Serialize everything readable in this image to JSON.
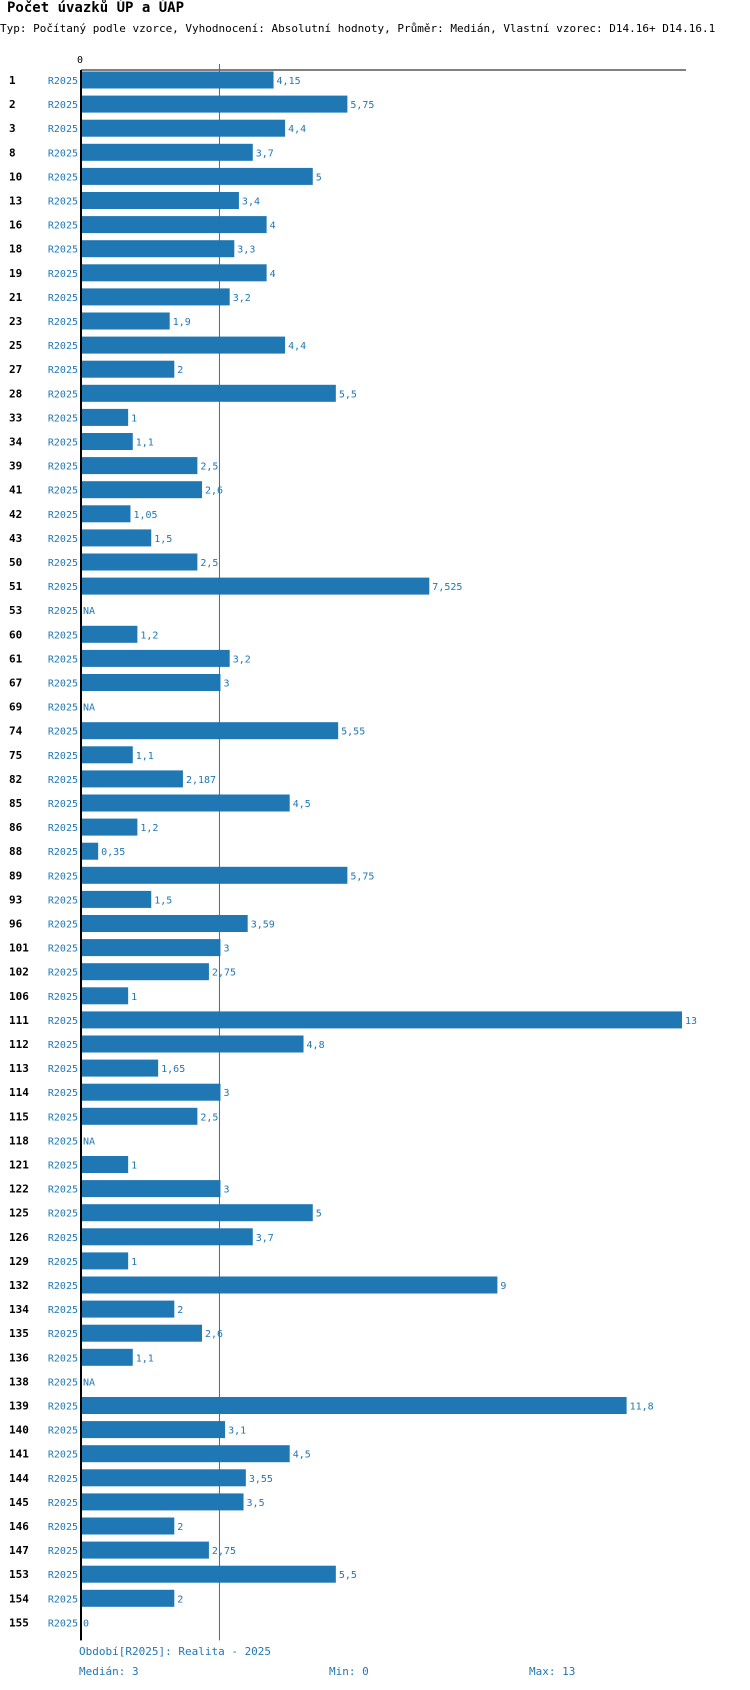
{
  "title": "Počet úvazků ÚP a ÚAP",
  "subtitle": "Typ: Počítaný podle vzorce, Vyhodnocení: Absolutní hodnoty, Průměr: Medián, Vlastní vzorec: D14.16+ D14.16.1",
  "colors": {
    "bar": "#1f77b4",
    "label": "#1f77b4",
    "id": "#000000",
    "median_line": "#1f77b4"
  },
  "chart_data": {
    "type": "bar",
    "orientation": "horizontal",
    "series_name": "R2025",
    "axis_zero_label": "0",
    "xlim": [
      0,
      13
    ],
    "median": 3,
    "rows": [
      {
        "id": "1",
        "period": "R2025",
        "value": 4.15,
        "label": "4,15"
      },
      {
        "id": "2",
        "period": "R2025",
        "value": 5.75,
        "label": "5,75"
      },
      {
        "id": "3",
        "period": "R2025",
        "value": 4.4,
        "label": "4,4"
      },
      {
        "id": "8",
        "period": "R2025",
        "value": 3.7,
        "label": "3,7"
      },
      {
        "id": "10",
        "period": "R2025",
        "value": 5,
        "label": "5"
      },
      {
        "id": "13",
        "period": "R2025",
        "value": 3.4,
        "label": "3,4"
      },
      {
        "id": "16",
        "period": "R2025",
        "value": 4,
        "label": "4"
      },
      {
        "id": "18",
        "period": "R2025",
        "value": 3.3,
        "label": "3,3"
      },
      {
        "id": "19",
        "period": "R2025",
        "value": 4,
        "label": "4"
      },
      {
        "id": "21",
        "period": "R2025",
        "value": 3.2,
        "label": "3,2"
      },
      {
        "id": "23",
        "period": "R2025",
        "value": 1.9,
        "label": "1,9"
      },
      {
        "id": "25",
        "period": "R2025",
        "value": 4.4,
        "label": "4,4"
      },
      {
        "id": "27",
        "period": "R2025",
        "value": 2,
        "label": "2"
      },
      {
        "id": "28",
        "period": "R2025",
        "value": 5.5,
        "label": "5,5"
      },
      {
        "id": "33",
        "period": "R2025",
        "value": 1,
        "label": "1"
      },
      {
        "id": "34",
        "period": "R2025",
        "value": 1.1,
        "label": "1,1"
      },
      {
        "id": "39",
        "period": "R2025",
        "value": 2.5,
        "label": "2,5"
      },
      {
        "id": "41",
        "period": "R2025",
        "value": 2.6,
        "label": "2,6"
      },
      {
        "id": "42",
        "period": "R2025",
        "value": 1.05,
        "label": "1,05"
      },
      {
        "id": "43",
        "period": "R2025",
        "value": 1.5,
        "label": "1,5"
      },
      {
        "id": "50",
        "period": "R2025",
        "value": 2.5,
        "label": "2,5"
      },
      {
        "id": "51",
        "period": "R2025",
        "value": 7.525,
        "label": "7,525"
      },
      {
        "id": "53",
        "period": "R2025",
        "value": null,
        "label": "NA"
      },
      {
        "id": "60",
        "period": "R2025",
        "value": 1.2,
        "label": "1,2"
      },
      {
        "id": "61",
        "period": "R2025",
        "value": 3.2,
        "label": "3,2"
      },
      {
        "id": "67",
        "period": "R2025",
        "value": 3,
        "label": "3"
      },
      {
        "id": "69",
        "period": "R2025",
        "value": null,
        "label": "NA"
      },
      {
        "id": "74",
        "period": "R2025",
        "value": 5.55,
        "label": "5,55"
      },
      {
        "id": "75",
        "period": "R2025",
        "value": 1.1,
        "label": "1,1"
      },
      {
        "id": "82",
        "period": "R2025",
        "value": 2.187,
        "label": "2,187"
      },
      {
        "id": "85",
        "period": "R2025",
        "value": 4.5,
        "label": "4,5"
      },
      {
        "id": "86",
        "period": "R2025",
        "value": 1.2,
        "label": "1,2"
      },
      {
        "id": "88",
        "period": "R2025",
        "value": 0.35,
        "label": "0,35"
      },
      {
        "id": "89",
        "period": "R2025",
        "value": 5.75,
        "label": "5,75"
      },
      {
        "id": "93",
        "period": "R2025",
        "value": 1.5,
        "label": "1,5"
      },
      {
        "id": "96",
        "period": "R2025",
        "value": 3.59,
        "label": "3,59"
      },
      {
        "id": "101",
        "period": "R2025",
        "value": 3,
        "label": "3"
      },
      {
        "id": "102",
        "period": "R2025",
        "value": 2.75,
        "label": "2,75"
      },
      {
        "id": "106",
        "period": "R2025",
        "value": 1,
        "label": "1"
      },
      {
        "id": "111",
        "period": "R2025",
        "value": 13,
        "label": "13"
      },
      {
        "id": "112",
        "period": "R2025",
        "value": 4.8,
        "label": "4,8"
      },
      {
        "id": "113",
        "period": "R2025",
        "value": 1.65,
        "label": "1,65"
      },
      {
        "id": "114",
        "period": "R2025",
        "value": 3,
        "label": "3"
      },
      {
        "id": "115",
        "period": "R2025",
        "value": 2.5,
        "label": "2,5"
      },
      {
        "id": "118",
        "period": "R2025",
        "value": null,
        "label": "NA"
      },
      {
        "id": "121",
        "period": "R2025",
        "value": 1,
        "label": "1"
      },
      {
        "id": "122",
        "period": "R2025",
        "value": 3,
        "label": "3"
      },
      {
        "id": "125",
        "period": "R2025",
        "value": 5,
        "label": "5"
      },
      {
        "id": "126",
        "period": "R2025",
        "value": 3.7,
        "label": "3,7"
      },
      {
        "id": "129",
        "period": "R2025",
        "value": 1,
        "label": "1"
      },
      {
        "id": "132",
        "period": "R2025",
        "value": 9,
        "label": "9"
      },
      {
        "id": "134",
        "period": "R2025",
        "value": 2,
        "label": "2"
      },
      {
        "id": "135",
        "period": "R2025",
        "value": 2.6,
        "label": "2,6"
      },
      {
        "id": "136",
        "period": "R2025",
        "value": 1.1,
        "label": "1,1"
      },
      {
        "id": "138",
        "period": "R2025",
        "value": null,
        "label": "NA"
      },
      {
        "id": "139",
        "period": "R2025",
        "value": 11.8,
        "label": "11,8"
      },
      {
        "id": "140",
        "period": "R2025",
        "value": 3.1,
        "label": "3,1"
      },
      {
        "id": "141",
        "period": "R2025",
        "value": 4.5,
        "label": "4,5"
      },
      {
        "id": "144",
        "period": "R2025",
        "value": 3.55,
        "label": "3,55"
      },
      {
        "id": "145",
        "period": "R2025",
        "value": 3.5,
        "label": "3,5"
      },
      {
        "id": "146",
        "period": "R2025",
        "value": 2,
        "label": "2"
      },
      {
        "id": "147",
        "period": "R2025",
        "value": 2.75,
        "label": "2,75"
      },
      {
        "id": "153",
        "period": "R2025",
        "value": 5.5,
        "label": "5,5"
      },
      {
        "id": "154",
        "period": "R2025",
        "value": 2,
        "label": "2"
      },
      {
        "id": "155",
        "period": "R2025",
        "value": 0,
        "label": "0"
      }
    ]
  },
  "footer": {
    "period_note": "Období[R2025]: Realita - 2025",
    "median_text": "Medián: 3",
    "min_text": "Min: 0",
    "max_text": "Max: 13"
  }
}
